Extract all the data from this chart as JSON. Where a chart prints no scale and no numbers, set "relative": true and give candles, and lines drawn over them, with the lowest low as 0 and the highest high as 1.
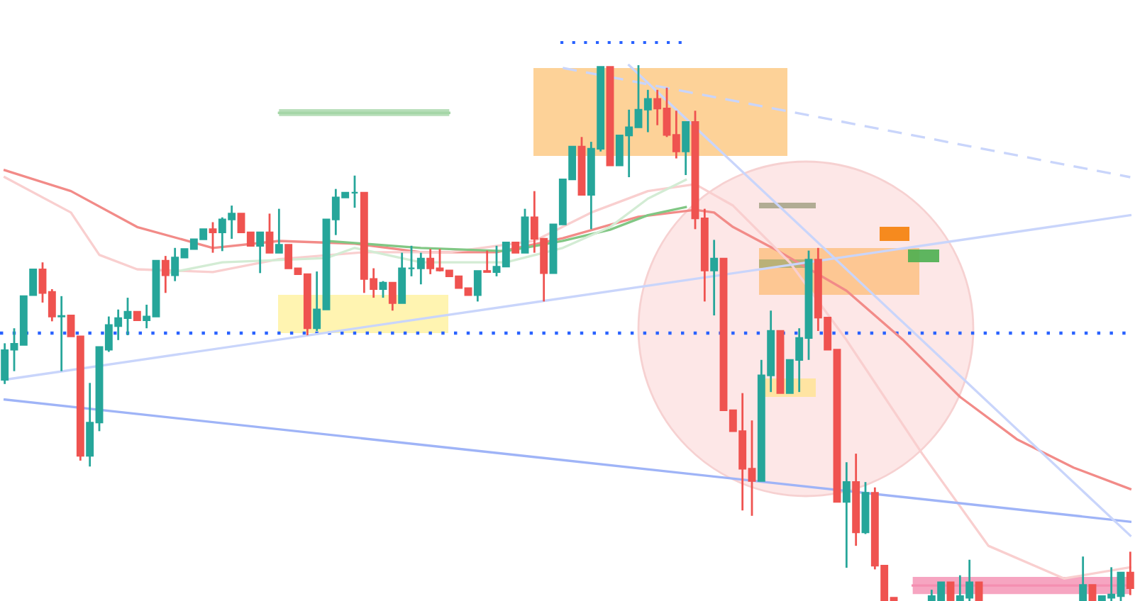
{
  "chart_data": {
    "type": "candlestick",
    "relative": true,
    "categories": [
      null,
      null,
      null,
      null,
      null,
      null,
      null,
      null,
      null,
      null,
      null,
      null,
      null,
      null,
      null,
      null,
      null,
      null,
      null,
      null,
      null,
      null,
      null,
      null,
      null,
      null,
      null,
      null,
      null,
      null,
      null,
      null,
      null,
      null,
      null,
      null,
      null,
      null,
      null,
      null,
      null,
      null,
      null,
      null,
      null,
      null,
      null,
      null,
      null,
      null,
      null,
      null,
      null,
      null,
      null,
      null,
      null,
      null,
      null,
      null,
      null,
      null,
      null,
      null,
      null,
      null,
      null,
      null,
      null,
      null,
      null,
      null,
      null,
      null,
      null,
      null,
      null,
      null,
      null,
      null,
      null,
      null,
      null,
      null,
      null,
      null,
      null,
      null,
      null,
      null,
      null,
      null,
      null,
      null,
      null,
      null,
      null,
      null,
      null,
      null,
      null,
      null,
      null,
      null,
      null,
      null,
      null,
      null,
      null,
      null,
      null,
      null,
      null,
      null,
      null,
      null,
      null,
      null,
      null,
      null
    ],
    "ohlc": [
      [
        0.413,
        0.481,
        0.405,
        0.468
      ],
      [
        0.469,
        0.509,
        0.429,
        0.48
      ],
      [
        0.478,
        0.569,
        0.478,
        0.569
      ],
      [
        0.571,
        0.619,
        0.571,
        0.619
      ],
      [
        0.619,
        0.632,
        0.557,
        0.575
      ],
      [
        0.577,
        0.582,
        0.522,
        0.531
      ],
      [
        0.531,
        0.569,
        0.429,
        0.532
      ],
      [
        0.533,
        0.533,
        0.494,
        0.494
      ],
      [
        0.494,
        0.494,
        0.262,
        0.271
      ],
      [
        0.271,
        0.407,
        0.251,
        0.333
      ],
      [
        0.333,
        0.474,
        0.317,
        0.474
      ],
      [
        0.469,
        0.531,
        0.465,
        0.515
      ],
      [
        0.513,
        0.544,
        0.487,
        0.528
      ],
      [
        0.528,
        0.566,
        0.496,
        0.54
      ],
      [
        0.54,
        0.54,
        0.524,
        0.524
      ],
      [
        0.524,
        0.553,
        0.509,
        0.531
      ],
      [
        0.531,
        0.635,
        0.531,
        0.635
      ],
      [
        0.635,
        0.644,
        0.575,
        0.608
      ],
      [
        0.608,
        0.659,
        0.597,
        0.641
      ],
      [
        0.641,
        0.657,
        0.641,
        0.657
      ],
      [
        0.657,
        0.675,
        0.657,
        0.675
      ],
      [
        0.675,
        0.694,
        0.675,
        0.694
      ],
      [
        0.694,
        0.707,
        0.65,
        0.688
      ],
      [
        0.688,
        0.716,
        0.653,
        0.712
      ],
      [
        0.712,
        0.738,
        0.676,
        0.723
      ],
      [
        0.723,
        0.723,
        0.688,
        0.688
      ],
      [
        0.688,
        0.688,
        0.663,
        0.663
      ],
      [
        0.663,
        0.688,
        0.612,
        0.688
      ],
      [
        0.688,
        0.723,
        0.65,
        0.65
      ],
      [
        0.65,
        0.732,
        0.65,
        0.665
      ],
      [
        0.665,
        0.665,
        0.621,
        0.621
      ],
      [
        0.621,
        0.621,
        0.61,
        0.61
      ],
      [
        0.61,
        0.61,
        0.496,
        0.509
      ],
      [
        0.509,
        0.615,
        0.504,
        0.544
      ],
      [
        0.544,
        0.712,
        0.544,
        0.712
      ],
      [
        0.712,
        0.769,
        0.683,
        0.753
      ],
      [
        0.753,
        0.762,
        0.753,
        0.762
      ],
      [
        0.762,
        0.794,
        0.734,
        0.762
      ],
      [
        0.762,
        0.762,
        0.575,
        0.601
      ],
      [
        0.601,
        0.621,
        0.566,
        0.582
      ],
      [
        0.582,
        0.597,
        0.566,
        0.594
      ],
      [
        0.594,
        0.594,
        0.542,
        0.556
      ],
      [
        0.556,
        0.65,
        0.556,
        0.621
      ],
      [
        0.621,
        0.663,
        0.606,
        0.621
      ],
      [
        0.621,
        0.65,
        0.591,
        0.639
      ],
      [
        0.639,
        0.657,
        0.61,
        0.621
      ],
      [
        0.621,
        0.657,
        0.615,
        0.617
      ],
      [
        0.617,
        0.617,
        0.606,
        0.606
      ],
      [
        0.606,
        0.606,
        0.584,
        0.584
      ],
      [
        0.584,
        0.584,
        0.571,
        0.571
      ],
      [
        0.571,
        0.616,
        0.559,
        0.616
      ],
      [
        0.616,
        0.654,
        0.614,
        0.614
      ],
      [
        0.614,
        0.663,
        0.606,
        0.624
      ],
      [
        0.624,
        0.669,
        0.624,
        0.669
      ],
      [
        0.669,
        0.669,
        0.65,
        0.65
      ],
      [
        0.65,
        0.732,
        0.65,
        0.716
      ],
      [
        0.716,
        0.765,
        0.65,
        0.676
      ],
      [
        0.676,
        0.676,
        0.559,
        0.612
      ],
      [
        0.612,
        0.703,
        0.612,
        0.703
      ],
      [
        0.703,
        0.787,
        0.703,
        0.787
      ],
      [
        0.787,
        0.848,
        0.787,
        0.848
      ],
      [
        0.848,
        0.866,
        0.758,
        0.758
      ],
      [
        0.758,
        0.857,
        0.694,
        0.844
      ],
      [
        0.844,
        0.997,
        0.839,
        0.997
      ],
      [
        0.997,
        0.997,
        0.813,
        0.813
      ],
      [
        0.813,
        0.869,
        0.813,
        0.869
      ],
      [
        0.869,
        0.917,
        0.791,
        0.884
      ],
      [
        0.884,
        1.0,
        0.884,
        0.917
      ],
      [
        0.917,
        0.954,
        0.875,
        0.937
      ],
      [
        0.937,
        0.954,
        0.888,
        0.919
      ],
      [
        0.919,
        0.958,
        0.866,
        0.87
      ],
      [
        0.87,
        0.915,
        0.826,
        0.839
      ],
      [
        0.839,
        0.894,
        0.795,
        0.894
      ],
      [
        0.894,
        0.915,
        0.694,
        0.714
      ],
      [
        0.714,
        0.732,
        0.559,
        0.617
      ],
      [
        0.617,
        0.674,
        0.533,
        0.639
      ],
      [
        0.639,
        0.639,
        0.356,
        0.356
      ],
      [
        0.356,
        0.356,
        0.317,
        0.317
      ],
      [
        0.317,
        0.388,
        0.169,
        0.247
      ],
      [
        0.247,
        0.337,
        0.159,
        0.224
      ],
      [
        0.224,
        0.45,
        0.224,
        0.421
      ],
      [
        0.421,
        0.542,
        0.39,
        0.504
      ],
      [
        0.504,
        0.504,
        0.388,
        0.388
      ],
      [
        0.388,
        0.45,
        0.388,
        0.45
      ],
      [
        0.45,
        0.509,
        0.39,
        0.491
      ],
      [
        0.491,
        0.654,
        0.45,
        0.637
      ],
      [
        0.637,
        0.659,
        0.504,
        0.529
      ],
      [
        0.529,
        0.529,
        0.469,
        0.469
      ],
      [
        0.469,
        0.469,
        0.185,
        0.185
      ],
      [
        0.185,
        0.259,
        0.062,
        0.222
      ],
      [
        0.222,
        0.275,
        0.103,
        0.128
      ],
      [
        0.128,
        0.222,
        0.125,
        0.202
      ],
      [
        0.202,
        0.212,
        0.059,
        0.066
      ],
      [
        0.066,
        0.066,
        0,
        0
      ],
      [
        0.006,
        0.006,
        0,
        0
      ],
      null,
      null,
      null,
      [
        0,
        0.021,
        0,
        0.009
      ],
      [
        0,
        0.035,
        0,
        0.035
      ],
      [
        0.035,
        0.035,
        0,
        0
      ],
      [
        0,
        0.048,
        0,
        0.009
      ],
      [
        0.006,
        0.077,
        0,
        0.035
      ],
      [
        0.035,
        0.035,
        0,
        0
      ],
      null,
      null,
      null,
      null,
      null,
      null,
      null,
      null,
      null,
      null,
      [
        0,
        0.083,
        0,
        0.03
      ],
      [
        0.03,
        0.03,
        0,
        0
      ],
      [
        0,
        0.009,
        0,
        0.009
      ],
      [
        0.006,
        0.063,
        0,
        0.012
      ],
      [
        0.009,
        0.053,
        0,
        0.053
      ],
      [
        0.053,
        0.092,
        0.011,
        0.024
      ]
    ],
    "colors": [
      "#26a69a",
      "#26a69a",
      "#26a69a",
      "#26a69a",
      "#ef5350",
      "#ef5350",
      "#26a69a",
      "#ef5350",
      "#ef5350",
      "#26a69a",
      "#26a69a",
      "#26a69a",
      "#26a69a",
      "#26a69a",
      "#ef5350",
      "#26a69a",
      "#26a69a",
      "#ef5350",
      "#26a69a",
      "#26a69a",
      "#26a69a",
      "#26a69a",
      "#ef5350",
      "#26a69a",
      "#26a69a",
      "#ef5350",
      "#ef5350",
      "#26a69a",
      "#ef5350",
      "#26a69a",
      "#ef5350",
      "#ef5350",
      "#ef5350",
      "#26a69a",
      "#26a69a",
      "#26a69a",
      "#26a69a",
      "#26a69a",
      "#ef5350",
      "#ef5350",
      "#26a69a",
      "#ef5350",
      "#26a69a",
      "#26a69a",
      "#26a69a",
      "#ef5350",
      "#ef5350",
      "#ef5350",
      "#ef5350",
      "#ef5350",
      "#26a69a",
      "#ef5350",
      "#26a69a",
      "#26a69a",
      "#ef5350",
      "#26a69a",
      "#ef5350",
      "#ef5350",
      "#26a69a",
      "#26a69a",
      "#26a69a",
      "#ef5350",
      "#26a69a",
      "#26a69a",
      "#ef5350",
      "#26a69a",
      "#26a69a",
      "#26a69a",
      "#26a69a",
      "#ef5350",
      "#ef5350",
      "#ef5350",
      "#26a69a",
      "#ef5350",
      "#ef5350",
      "#26a69a",
      "#ef5350",
      "#ef5350",
      "#ef5350",
      "#ef5350",
      "#26a69a",
      "#26a69a",
      "#ef5350",
      "#26a69a",
      "#26a69a",
      "#26a69a",
      "#ef5350",
      "#ef5350",
      "#ef5350",
      "#26a69a",
      "#ef5350",
      "#26a69a",
      "#ef5350",
      "#ef5350",
      "#ef5350",
      null,
      null,
      null,
      "#26a69a",
      "#26a69a",
      "#ef5350",
      "#26a69a",
      "#26a69a",
      "#ef5350",
      null,
      null,
      null,
      null,
      null,
      null,
      null,
      null,
      null,
      null,
      "#26a69a",
      "#ef5350",
      "#26a69a",
      "#26a69a",
      "#26a69a",
      "#ef5350"
    ],
    "series": [
      {
        "type": "line",
        "color": "#f28b88",
        "values": [
          0.804,
          null,
          null,
          null,
          null,
          null,
          null,
          0.765,
          null,
          null,
          null,
          null,
          null,
          null,
          0.698,
          null,
          null,
          null,
          null,
          null,
          null,
          null,
          0.659,
          null,
          null,
          null,
          null,
          null,
          null,
          0.672,
          null,
          null,
          null,
          null,
          null,
          null,
          null,
          0.667,
          null,
          null,
          null,
          null,
          null,
          null,
          0.651,
          null,
          null,
          null,
          null,
          null,
          null,
          null,
          0.651,
          null,
          null,
          null,
          null,
          null,
          null,
          0.677,
          null,
          null,
          null,
          null,
          null,
          null,
          null,
          0.717,
          null,
          null,
          null,
          null,
          null,
          0.73,
          null,
          0.725,
          null,
          0.698,
          null,
          null,
          null,
          null,
          0.651,
          null,
          null,
          null,
          null,
          null,
          null,
          0.579,
          null,
          null,
          null,
          null,
          null,
          0.487,
          null,
          null,
          null,
          null,
          null,
          0.381,
          null,
          null,
          null,
          null,
          null,
          0.302,
          null,
          null,
          null,
          null,
          null,
          0.249,
          null,
          null,
          null,
          null,
          null,
          0.209
        ]
      },
      {
        "type": "line",
        "color": "#f9cfcf",
        "values": [
          0.791,
          null,
          null,
          null,
          null,
          null,
          null,
          0.725,
          null,
          null,
          0.646,
          null,
          null,
          null,
          0.619,
          null,
          null,
          null,
          null,
          null,
          null,
          null,
          0.614,
          null,
          null,
          null,
          null,
          null,
          null,
          0.638,
          null,
          null,
          null,
          null,
          null,
          null,
          null,
          null,
          0.651,
          null,
          null,
          null,
          null,
          null,
          null,
          null,
          null,
          0.651,
          null,
          null,
          null,
          null,
          null,
          null,
          null,
          null,
          0.672,
          null,
          null,
          null,
          null,
          null,
          0.725,
          null,
          null,
          null,
          null,
          null,
          0.765,
          null,
          null,
          null,
          null,
          0.778,
          null,
          null,
          null,
          0.738,
          null,
          null,
          null,
          null,
          null,
          0.632,
          null,
          null,
          null,
          null,
          null,
          0.487,
          null,
          null,
          null,
          null,
          null,
          null,
          null,
          0.275,
          null,
          null,
          null,
          null,
          null,
          null,
          0.103,
          null,
          null,
          null,
          null,
          null,
          null,
          null,
          0.042,
          null,
          null,
          null,
          null,
          null,
          null,
          0.063
        ]
      },
      {
        "type": "line",
        "color": "#81c784",
        "values": [
          null,
          null,
          null,
          null,
          null,
          null,
          null,
          null,
          null,
          null,
          null,
          null,
          null,
          null,
          null,
          null,
          null,
          null,
          null,
          null,
          null,
          null,
          null,
          null,
          null,
          null,
          null,
          null,
          null,
          null,
          null,
          null,
          null,
          null,
          0.672,
          null,
          null,
          null,
          null,
          null,
          null,
          null,
          null,
          null,
          0.659,
          null,
          null,
          null,
          null,
          null,
          null,
          null,
          null,
          0.653,
          null,
          null,
          null,
          null,
          null,
          0.672,
          null,
          null,
          null,
          null,
          0.693,
          null,
          null,
          null,
          0.72,
          null,
          null,
          null,
          0.735,
          null,
          null,
          null,
          null,
          null,
          null,
          null,
          null,
          null,
          null,
          null,
          null,
          null,
          null,
          null,
          null,
          null,
          null,
          null,
          null,
          null,
          null,
          null,
          null,
          null,
          null,
          null,
          null,
          null,
          null,
          null,
          null,
          null,
          null,
          null,
          null,
          null,
          null,
          null,
          null,
          null,
          null,
          null,
          null,
          null,
          null,
          null
        ]
      },
      {
        "type": "line",
        "color": "#d3ecd4",
        "values": [
          null,
          null,
          null,
          null,
          null,
          null,
          null,
          null,
          null,
          null,
          null,
          null,
          null,
          null,
          null,
          null,
          null,
          0.611,
          null,
          null,
          null,
          null,
          null,
          0.632,
          null,
          null,
          null,
          null,
          null,
          null,
          null,
          null,
          null,
          null,
          0.64,
          null,
          null,
          0.659,
          null,
          null,
          null,
          null,
          null,
          null,
          0.632,
          null,
          null,
          null,
          null,
          null,
          null,
          null,
          null,
          0.632,
          null,
          null,
          null,
          null,
          null,
          0.659,
          null,
          null,
          null,
          null,
          0.698,
          null,
          null,
          null,
          0.751,
          null,
          null,
          null,
          0.786,
          null,
          null,
          null,
          null,
          null,
          null,
          null,
          null,
          null,
          null,
          null,
          null,
          null,
          null,
          null,
          null,
          null,
          null,
          null,
          null,
          null,
          null,
          null,
          null,
          null,
          null,
          null,
          null,
          null,
          null,
          null,
          null,
          null,
          null,
          null,
          null,
          null,
          null,
          null,
          null,
          null,
          null,
          null,
          null,
          null,
          null,
          null
        ]
      },
      {
        "type": "line",
        "color": "#9fb4f7",
        "values": [
          0.376,
          null,
          null,
          null,
          null,
          null,
          null,
          null,
          null,
          null,
          null,
          null,
          null,
          null,
          null,
          null,
          null,
          null,
          null,
          null,
          null,
          null,
          null,
          null,
          null,
          null,
          null,
          null,
          null,
          null,
          null,
          null,
          null,
          null,
          null,
          null,
          null,
          null,
          null,
          null,
          null,
          null,
          null,
          null,
          null,
          null,
          null,
          null,
          null,
          null,
          null,
          null,
          null,
          null,
          null,
          null,
          null,
          null,
          null,
          null,
          null,
          null,
          null,
          null,
          null,
          null,
          null,
          null,
          null,
          null,
          null,
          null,
          null,
          null,
          null,
          null,
          null,
          null,
          null,
          null,
          null,
          null,
          null,
          null,
          null,
          null,
          null,
          null,
          null,
          null,
          null,
          null,
          null,
          null,
          null,
          null,
          null,
          null,
          null,
          null,
          null,
          null,
          null,
          null,
          null,
          null,
          null,
          null,
          null,
          null,
          null,
          null,
          null,
          null,
          null,
          null,
          null,
          null,
          null,
          0.148
        ]
      },
      {
        "type": "line",
        "color": "#c9d5fb",
        "values": [
          0.413,
          null,
          null,
          null,
          null,
          null,
          null,
          null,
          null,
          null,
          null,
          null,
          null,
          null,
          null,
          null,
          null,
          null,
          null,
          null,
          null,
          null,
          null,
          null,
          null,
          null,
          null,
          null,
          null,
          null,
          null,
          null,
          null,
          null,
          null,
          null,
          null,
          null,
          null,
          null,
          null,
          null,
          null,
          null,
          null,
          null,
          null,
          null,
          null,
          null,
          null,
          null,
          null,
          null,
          null,
          null,
          null,
          null,
          null,
          null,
          null,
          null,
          null,
          null,
          null,
          null,
          null,
          null,
          null,
          null,
          null,
          null,
          null,
          null,
          null,
          null,
          null,
          null,
          null,
          null,
          null,
          null,
          null,
          null,
          null,
          null,
          null,
          null,
          null,
          null,
          null,
          null,
          null,
          null,
          null,
          null,
          null,
          null,
          null,
          null,
          null,
          null,
          null,
          null,
          null,
          null,
          null,
          null,
          null,
          null,
          null,
          null,
          null,
          null,
          null,
          null,
          null,
          null,
          null,
          0.72
        ]
      },
      {
        "type": "line",
        "color": "#c9d5fb",
        "line_style": "dashed",
        "values": [
          null,
          null,
          null,
          null,
          null,
          null,
          null,
          null,
          null,
          null,
          null,
          null,
          null,
          null,
          null,
          null,
          null,
          null,
          null,
          null,
          null,
          null,
          null,
          null,
          null,
          null,
          null,
          null,
          null,
          null,
          null,
          null,
          null,
          null,
          null,
          null,
          null,
          null,
          null,
          null,
          null,
          null,
          null,
          null,
          null,
          null,
          null,
          null,
          null,
          null,
          null,
          null,
          null,
          null,
          null,
          null,
          null,
          null,
          null,
          0.995,
          null,
          null,
          null,
          null,
          null,
          null,
          null,
          null,
          null,
          null,
          null,
          null,
          null,
          null,
          null,
          null,
          null,
          null,
          null,
          null,
          null,
          null,
          null,
          null,
          null,
          null,
          null,
          null,
          null,
          null,
          null,
          null,
          null,
          null,
          null,
          null,
          null,
          null,
          null,
          null,
          null,
          null,
          null,
          null,
          null,
          null,
          null,
          null,
          null,
          null,
          null,
          null,
          null,
          null,
          null,
          null,
          null,
          null,
          null,
          0.791
        ]
      },
      {
        "type": "line",
        "color": "#c9d5fb",
        "values": [
          null,
          null,
          null,
          null,
          null,
          null,
          null,
          null,
          null,
          null,
          null,
          null,
          null,
          null,
          null,
          null,
          null,
          null,
          null,
          null,
          null,
          null,
          null,
          null,
          null,
          null,
          null,
          null,
          null,
          null,
          null,
          null,
          null,
          null,
          null,
          null,
          null,
          null,
          null,
          null,
          null,
          null,
          null,
          null,
          null,
          null,
          null,
          null,
          null,
          null,
          null,
          null,
          null,
          null,
          null,
          null,
          null,
          null,
          null,
          null,
          null,
          null,
          null,
          null,
          null,
          null,
          1.0,
          null,
          null,
          null,
          null,
          null,
          null,
          null,
          null,
          null,
          null,
          null,
          null,
          null,
          null,
          null,
          null,
          null,
          null,
          null,
          null,
          null,
          null,
          null,
          null,
          null,
          null,
          null,
          null,
          null,
          null,
          null,
          null,
          null,
          null,
          null,
          null,
          null,
          null,
          null,
          null,
          null,
          null,
          null,
          null,
          null,
          null,
          null,
          null,
          null,
          null,
          null,
          null,
          0.122
        ]
      },
      {
        "type": "line",
        "color": "#a5d6a7",
        "values": [
          null,
          null,
          null,
          null,
          null,
          null,
          null,
          null,
          null,
          null,
          null,
          null,
          null,
          null,
          null,
          null,
          null,
          null,
          null,
          null,
          null,
          null,
          null,
          null,
          null,
          null,
          null,
          null,
          null,
          0.911,
          null,
          null,
          null,
          null,
          null,
          null,
          null,
          null,
          null,
          null,
          null,
          null,
          null,
          null,
          null,
          null,
          null,
          0.911,
          null,
          null,
          null,
          null,
          null,
          null,
          null,
          null,
          null,
          null,
          null,
          null,
          null,
          null,
          null,
          null,
          null,
          null,
          null,
          null,
          null,
          null,
          null,
          null,
          null,
          null,
          null,
          null,
          null,
          null,
          null,
          null,
          null,
          null,
          null,
          null,
          null,
          null,
          null,
          null,
          null,
          null,
          null,
          null,
          null,
          null,
          null,
          null,
          null,
          null,
          null,
          null,
          null,
          null,
          null,
          null,
          null,
          null,
          null,
          null,
          null,
          null,
          null,
          null,
          null,
          null,
          null,
          null,
          null,
          null,
          null,
          null
        ],
        "lower": [
          null,
          null,
          null,
          null,
          null,
          null,
          null,
          null,
          null,
          null,
          null,
          null,
          null,
          null,
          null,
          null,
          null,
          null,
          null,
          null,
          null,
          null,
          null,
          null,
          null,
          null,
          null,
          null,
          null,
          0.905,
          null,
          null,
          null,
          null,
          null,
          null,
          null,
          null,
          null,
          null,
          null,
          null,
          null,
          null,
          null,
          null,
          null,
          0.905,
          null,
          null,
          null,
          null,
          null,
          null,
          null,
          null,
          null,
          null,
          null,
          null,
          null,
          null,
          null,
          null,
          null,
          null,
          null,
          null,
          null,
          null,
          null,
          null,
          null,
          null,
          null,
          null,
          null,
          null,
          null,
          null,
          null,
          null,
          null,
          null,
          null,
          null,
          null,
          null,
          null,
          null,
          null,
          null,
          null,
          null,
          null,
          null,
          null,
          null,
          null,
          null,
          null,
          null,
          null,
          null,
          null,
          null,
          null,
          null,
          null,
          null,
          null,
          null,
          null,
          null,
          null,
          null,
          null,
          null,
          null,
          null
        ],
        "upper": [
          null,
          null,
          null,
          null,
          null,
          null,
          null,
          null,
          null,
          null,
          null,
          null,
          null,
          null,
          null,
          null,
          null,
          null,
          null,
          null,
          null,
          null,
          null,
          null,
          null,
          null,
          null,
          null,
          null,
          0.918,
          null,
          null,
          null,
          null,
          null,
          null,
          null,
          null,
          null,
          null,
          null,
          null,
          null,
          null,
          null,
          null,
          null,
          0.918,
          null,
          null,
          null,
          null,
          null,
          null,
          null,
          null,
          null,
          null,
          null,
          null,
          null,
          null,
          null,
          null,
          null,
          null,
          null,
          null,
          null,
          null,
          null,
          null,
          null,
          null,
          null,
          null,
          null,
          null,
          null,
          null,
          null,
          null,
          null,
          null,
          null,
          null,
          null,
          null,
          null,
          null,
          null,
          null,
          null,
          null,
          null,
          null,
          null,
          null,
          null,
          null,
          null,
          null,
          null,
          null,
          null,
          null,
          null,
          null,
          null,
          null,
          null,
          null,
          null,
          null,
          null,
          null,
          null,
          null,
          null,
          null
        ]
      },
      {
        "type": "line",
        "color": "#f48fb1",
        "values": [
          null,
          null,
          null,
          null,
          null,
          null,
          null,
          null,
          null,
          null,
          null,
          null,
          null,
          null,
          null,
          null,
          null,
          null,
          null,
          null,
          null,
          null,
          null,
          null,
          null,
          null,
          null,
          null,
          null,
          null,
          null,
          null,
          null,
          null,
          null,
          null,
          null,
          null,
          null,
          null,
          null,
          null,
          null,
          null,
          null,
          null,
          null,
          null,
          null,
          null,
          null,
          null,
          null,
          null,
          null,
          null,
          null,
          null,
          null,
          null,
          null,
          null,
          null,
          null,
          null,
          null,
          null,
          null,
          null,
          null,
          null,
          null,
          null,
          null,
          null,
          null,
          null,
          null,
          null,
          null,
          null,
          null,
          null,
          null,
          null,
          null,
          null,
          null,
          null,
          null,
          null,
          null,
          null,
          null,
          null,
          null,
          0.029,
          null,
          null,
          null,
          null,
          null,
          null,
          null,
          null,
          null,
          null,
          null,
          null,
          null,
          null,
          null,
          null,
          null,
          null,
          null,
          null,
          null,
          null,
          0.029
        ],
        "lower": [
          null,
          null,
          null,
          null,
          null,
          null,
          null,
          null,
          null,
          null,
          null,
          null,
          null,
          null,
          null,
          null,
          null,
          null,
          null,
          null,
          null,
          null,
          null,
          null,
          null,
          null,
          null,
          null,
          null,
          null,
          null,
          null,
          null,
          null,
          null,
          null,
          null,
          null,
          null,
          null,
          null,
          null,
          null,
          null,
          null,
          null,
          null,
          null,
          null,
          null,
          null,
          null,
          null,
          null,
          null,
          null,
          null,
          null,
          null,
          null,
          null,
          null,
          null,
          null,
          null,
          null,
          null,
          null,
          null,
          null,
          null,
          null,
          null,
          null,
          null,
          null,
          null,
          null,
          null,
          null,
          null,
          null,
          null,
          null,
          null,
          null,
          null,
          null,
          null,
          null,
          null,
          null,
          null,
          null,
          null,
          null,
          0.013,
          null,
          null,
          null,
          null,
          null,
          null,
          null,
          null,
          null,
          null,
          null,
          null,
          null,
          null,
          null,
          null,
          null,
          null,
          null,
          null,
          null,
          null,
          0.013
        ],
        "upper": [
          null,
          null,
          null,
          null,
          null,
          null,
          null,
          null,
          null,
          null,
          null,
          null,
          null,
          null,
          null,
          null,
          null,
          null,
          null,
          null,
          null,
          null,
          null,
          null,
          null,
          null,
          null,
          null,
          null,
          null,
          null,
          null,
          null,
          null,
          null,
          null,
          null,
          null,
          null,
          null,
          null,
          null,
          null,
          null,
          null,
          null,
          null,
          null,
          null,
          null,
          null,
          null,
          null,
          null,
          null,
          null,
          null,
          null,
          null,
          null,
          null,
          null,
          null,
          null,
          null,
          null,
          null,
          null,
          null,
          null,
          null,
          null,
          null,
          null,
          null,
          null,
          null,
          null,
          null,
          null,
          null,
          null,
          null,
          null,
          null,
          null,
          null,
          null,
          null,
          null,
          null,
          null,
          null,
          null,
          null,
          null,
          0.045,
          null,
          null,
          null,
          null,
          null,
          null,
          null,
          null,
          null,
          null,
          null,
          null,
          null,
          null,
          null,
          null,
          null,
          null,
          null,
          null,
          null,
          null,
          0.045
        ]
      }
    ],
    "ref_lines": [
      {
        "axis": "y",
        "value": 0.5,
        "color": "#2962ff",
        "line_style": "dotted"
      }
    ]
  }
}
